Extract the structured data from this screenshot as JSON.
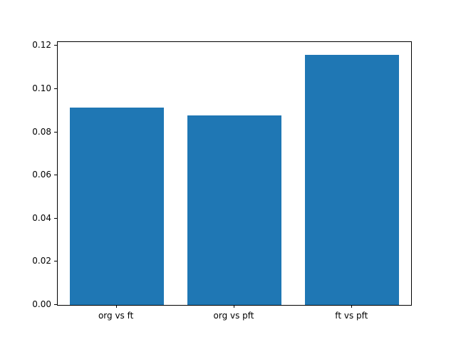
{
  "chart_data": {
    "type": "bar",
    "categories": [
      "org vs ft",
      "org vs pft",
      "ft vs pft"
    ],
    "values": [
      0.0915,
      0.0878,
      0.116
    ],
    "title": "",
    "xlabel": "",
    "ylabel": "",
    "ylim": [
      0,
      0.1218
    ],
    "yticks": [
      0.0,
      0.02,
      0.04,
      0.06,
      0.08,
      0.1,
      0.12
    ],
    "grid": false,
    "legend": "none",
    "bar_color": "#1f77b4",
    "bar_width_fraction": 0.8
  }
}
